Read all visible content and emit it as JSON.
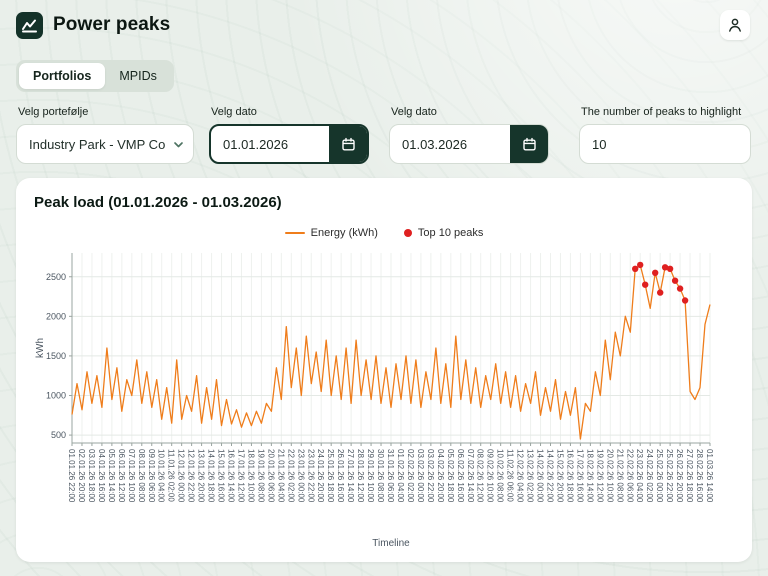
{
  "header": {
    "app_title": "Power peaks"
  },
  "tabs": {
    "portfolios": "Portfolios",
    "mpids": "MPIDs"
  },
  "filters": {
    "portfolio": {
      "label": "Velg portefølje",
      "value": "Industry Park - VMP Co"
    },
    "date_from": {
      "label": "Velg dato",
      "value": "01.01.2026"
    },
    "date_to": {
      "label": "Velg dato",
      "value": "01.03.2026"
    },
    "peaks": {
      "label": "The number of peaks to highlight",
      "value": "10"
    }
  },
  "chart": {
    "title": "Peak load (01.01.2026 - 01.03.2026)",
    "legend": {
      "series": "Energy (kWh)",
      "peaks": "Top 10 peaks"
    },
    "ylabel": "kWh",
    "xlabel": "Timeline"
  },
  "colors": {
    "accent_dark": "#16352b",
    "orange": "#ef7d1b",
    "red": "#df2020"
  },
  "chart_data": {
    "type": "line",
    "title": "Peak load (01.01.2026 - 01.03.2026)",
    "xlabel": "Timeline",
    "ylabel": "kWh",
    "ylim": [
      400,
      2800
    ],
    "yticks": [
      500,
      1000,
      1500,
      2000,
      2500
    ],
    "grid": true,
    "legend_position": "top",
    "legend": [
      "Energy (kWh)",
      "Top 10 peaks"
    ],
    "values_per_tick": 2,
    "x_tick_labels": [
      "01.01.26 22:00",
      "02.01.26 20:00",
      "03.01.26 18:00",
      "04.01.26 16:00",
      "05.01.26 14:00",
      "06.01.26 12:00",
      "07.01.26 10:00",
      "08.01.26 08:00",
      "09.01.26 06:00",
      "10.01.26 04:00",
      "11.01.26 02:00",
      "12.01.26 00:00",
      "12.01.26 22:00",
      "13.01.26 20:00",
      "14.01.26 18:00",
      "15.01.26 16:00",
      "16.01.26 14:00",
      "17.01.26 12:00",
      "18.01.26 10:00",
      "19.01.26 08:00",
      "20.01.26 06:00",
      "21.01.26 04:00",
      "22.01.26 02:00",
      "23.01.26 00:00",
      "23.01.26 22:00",
      "24.01.26 20:00",
      "25.01.26 18:00",
      "26.01.26 16:00",
      "27.01.26 14:00",
      "28.01.26 12:00",
      "29.01.26 10:00",
      "30.01.26 08:00",
      "31.01.26 06:00",
      "01.02.26 04:00",
      "02.02.26 02:00",
      "03.02.26 00:00",
      "03.02.26 22:00",
      "04.02.26 20:00",
      "05.02.26 18:00",
      "06.02.26 16:00",
      "07.02.26 14:00",
      "08.02.26 12:00",
      "09.02.26 10:00",
      "10.02.26 08:00",
      "11.02.26 06:00",
      "12.02.26 04:00",
      "13.02.26 02:00",
      "14.02.26 00:00",
      "14.02.26 22:00",
      "15.02.26 20:00",
      "16.02.26 18:00",
      "17.02.26 16:00",
      "18.02.26 14:00",
      "19.02.26 12:00",
      "20.02.26 10:00",
      "21.02.26 08:00",
      "22.02.26 06:00",
      "23.02.26 04:00",
      "24.02.26 02:00",
      "25.02.26 00:00",
      "25.02.26 22:00",
      "26.02.26 20:00",
      "27.02.26 18:00",
      "28.02.26 16:00",
      "01.03.26 14:00"
    ],
    "series": [
      {
        "name": "Energy (kWh)",
        "values": [
          760,
          1150,
          820,
          1300,
          900,
          1250,
          850,
          1600,
          950,
          1350,
          800,
          1200,
          1000,
          1450,
          900,
          1300,
          850,
          1200,
          700,
          1100,
          650,
          1450,
          700,
          1000,
          800,
          1250,
          650,
          1100,
          700,
          1200,
          620,
          950,
          640,
          820,
          600,
          780,
          620,
          800,
          650,
          900,
          800,
          1350,
          950,
          1870,
          1100,
          1600,
          1000,
          1750,
          1150,
          1550,
          1050,
          1700,
          1000,
          1500,
          950,
          1600,
          900,
          1700,
          1000,
          1450,
          950,
          1500,
          900,
          1350,
          850,
          1400,
          950,
          1500,
          900,
          1450,
          850,
          1300,
          950,
          1600,
          900,
          1400,
          850,
          1750,
          950,
          1450,
          900,
          1350,
          850,
          1250,
          950,
          1400,
          900,
          1300,
          850,
          1250,
          800,
          1150,
          900,
          1300,
          750,
          1100,
          800,
          1200,
          700,
          1050,
          750,
          1100,
          450,
          900,
          800,
          1300,
          1000,
          1700,
          1200,
          1800,
          1500,
          2000,
          1800,
          2600,
          2650,
          2400,
          2100,
          2550,
          2300,
          2620,
          2600,
          2450,
          2350,
          2200,
          1050,
          950,
          1100,
          1900,
          2150
        ]
      }
    ],
    "peak_indices": [
      114,
      113,
      119,
      120,
      117,
      121,
      115,
      122,
      118,
      123
    ]
  }
}
